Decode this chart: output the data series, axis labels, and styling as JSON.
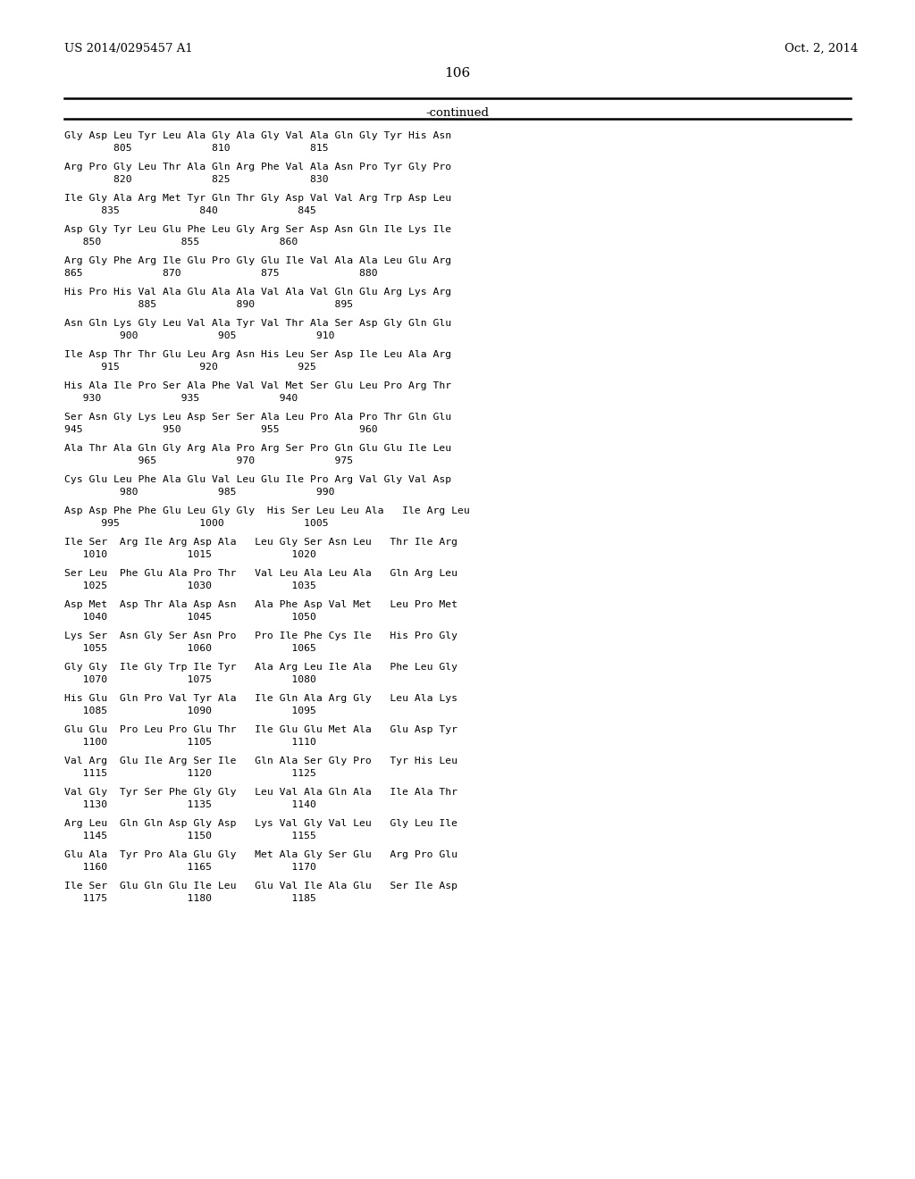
{
  "header_left": "US 2014/0295457 A1",
  "header_right": "Oct. 2, 2014",
  "page_number": "106",
  "continued_text": "-continued",
  "background_color": "#ffffff",
  "text_color": "#000000",
  "sequence_blocks": [
    {
      "aa": "Gly Asp Leu Tyr Leu Ala Gly Ala Gly Val Ala Gln Gly Tyr His Asn",
      "num": "        805             810             815"
    },
    {
      "aa": "Arg Pro Gly Leu Thr Ala Gln Arg Phe Val Ala Asn Pro Tyr Gly Pro",
      "num": "        820             825             830"
    },
    {
      "aa": "Ile Gly Ala Arg Met Tyr Gln Thr Gly Asp Val Val Arg Trp Asp Leu",
      "num": "      835             840             845"
    },
    {
      "aa": "Asp Gly Tyr Leu Glu Phe Leu Gly Arg Ser Asp Asn Gln Ile Lys Ile",
      "num": "   850             855             860"
    },
    {
      "aa": "Arg Gly Phe Arg Ile Glu Pro Gly Glu Ile Val Ala Ala Leu Glu Arg",
      "num": "865             870             875             880"
    },
    {
      "aa": "His Pro His Val Ala Glu Ala Ala Val Ala Val Gln Glu Arg Lys Arg",
      "num": "            885             890             895"
    },
    {
      "aa": "Asn Gln Lys Gly Leu Val Ala Tyr Val Thr Ala Ser Asp Gly Gln Glu",
      "num": "         900             905             910"
    },
    {
      "aa": "Ile Asp Thr Thr Glu Leu Arg Asn His Leu Ser Asp Ile Leu Ala Arg",
      "num": "      915             920             925"
    },
    {
      "aa": "His Ala Ile Pro Ser Ala Phe Val Val Met Ser Glu Leu Pro Arg Thr",
      "num": "   930             935             940"
    },
    {
      "aa": "Ser Asn Gly Lys Leu Asp Ser Ser Ala Leu Pro Ala Pro Thr Gln Glu",
      "num": "945             950             955             960"
    },
    {
      "aa": "Ala Thr Ala Gln Gly Arg Ala Pro Arg Ser Pro Gln Glu Glu Ile Leu",
      "num": "            965             970             975"
    },
    {
      "aa": "Cys Glu Leu Phe Ala Glu Val Leu Glu Ile Pro Arg Val Gly Val Asp",
      "num": "         980             985             990"
    },
    {
      "aa": "Asp Asp Phe Phe Glu Leu Gly Gly  His Ser Leu Leu Ala   Ile Arg Leu",
      "num": "      995             1000             1005"
    },
    {
      "aa": "Ile Ser  Arg Ile Arg Asp Ala   Leu Gly Ser Asn Leu   Thr Ile Arg",
      "num": "   1010             1015             1020"
    },
    {
      "aa": "Ser Leu  Phe Glu Ala Pro Thr   Val Leu Ala Leu Ala   Gln Arg Leu",
      "num": "   1025             1030             1035"
    },
    {
      "aa": "Asp Met  Asp Thr Ala Asp Asn   Ala Phe Asp Val Met   Leu Pro Met",
      "num": "   1040             1045             1050"
    },
    {
      "aa": "Lys Ser  Asn Gly Ser Asn Pro   Pro Ile Phe Cys Ile   His Pro Gly",
      "num": "   1055             1060             1065"
    },
    {
      "aa": "Gly Gly  Ile Gly Trp Ile Tyr   Ala Arg Leu Ile Ala   Phe Leu Gly",
      "num": "   1070             1075             1080"
    },
    {
      "aa": "His Glu  Gln Pro Val Tyr Ala   Ile Gln Ala Arg Gly   Leu Ala Lys",
      "num": "   1085             1090             1095"
    },
    {
      "aa": "Glu Glu  Pro Leu Pro Glu Thr   Ile Glu Glu Met Ala   Glu Asp Tyr",
      "num": "   1100             1105             1110"
    },
    {
      "aa": "Val Arg  Glu Ile Arg Ser Ile   Gln Ala Ser Gly Pro   Tyr His Leu",
      "num": "   1115             1120             1125"
    },
    {
      "aa": "Val Gly  Tyr Ser Phe Gly Gly   Leu Val Ala Gln Ala   Ile Ala Thr",
      "num": "   1130             1135             1140"
    },
    {
      "aa": "Arg Leu  Gln Gln Asp Gly Asp   Lys Val Gly Val Leu   Gly Leu Ile",
      "num": "   1145             1150             1155"
    },
    {
      "aa": "Glu Ala  Tyr Pro Ala Glu Gly   Met Ala Gly Ser Glu   Arg Pro Glu",
      "num": "   1160             1165             1170"
    },
    {
      "aa": "Ile Ser  Glu Gln Glu Ile Leu   Glu Val Ile Ala Glu   Ser Ile Asp",
      "num": "   1175             1180             1185"
    }
  ]
}
